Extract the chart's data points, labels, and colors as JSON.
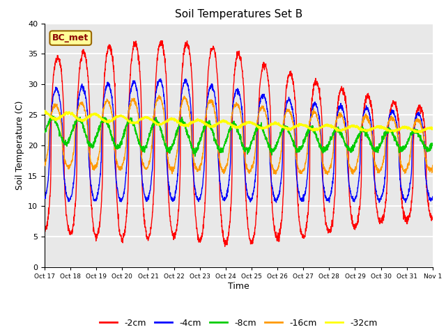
{
  "title": "Soil Temperatures Set B",
  "xlabel": "Time",
  "ylabel": "Soil Temperature (C)",
  "ylim": [
    0,
    40
  ],
  "series_labels": [
    "-2cm",
    "-4cm",
    "-8cm",
    "-16cm",
    "-32cm"
  ],
  "series_colors": [
    "#ff0000",
    "#0000ff",
    "#00cc00",
    "#ff9900",
    "#ffff00"
  ],
  "x_tick_labels": [
    "Oct 17",
    "Oct 18",
    "Oct 19",
    "Oct 20",
    "Oct 21",
    "Oct 22",
    "Oct 23",
    "Oct 24",
    "Oct 25",
    "Oct 26",
    "Oct 27",
    "Oct 28",
    "Oct 29",
    "Oct 30",
    "Oct 31",
    "Nov 1"
  ],
  "annotation_text": "BC_met",
  "annotation_color": "#8b0000",
  "annotation_bg": "#ffff99",
  "background_color": "#e8e8e8",
  "grid_color": "#ffffff",
  "n_days": 15,
  "points_per_day": 144
}
